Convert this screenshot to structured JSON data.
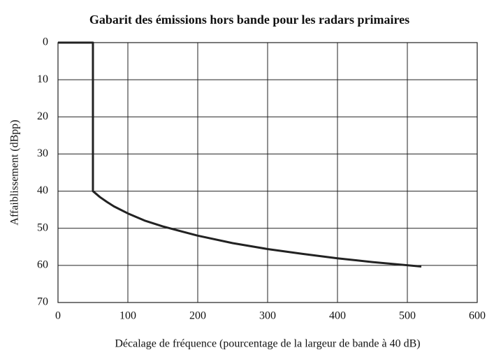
{
  "chart_data": {
    "type": "line",
    "title": "Gabarit des émissions hors bande pour les radars primaires",
    "xlabel": "Décalage de fréquence (pourcentage de la largeur de bande à 40 dB)",
    "ylabel": "Affaiblissement (dBpp)",
    "x": [
      0,
      50,
      50,
      60,
      70,
      80,
      100,
      125,
      150,
      200,
      250,
      300,
      350,
      400,
      450,
      520
    ],
    "series": [
      {
        "name": "Gabarit",
        "color": "#222222",
        "values": [
          0,
          0,
          40,
          41.6,
          42.9,
          44.1,
          46.0,
          48.0,
          49.5,
          52.0,
          54.0,
          55.6,
          56.9,
          58.1,
          59.1,
          60.3
        ]
      }
    ],
    "xlim": [
      0,
      600
    ],
    "xticks": [
      0,
      100,
      200,
      300,
      400,
      500,
      600
    ],
    "ylim": [
      0,
      70
    ],
    "yticks": [
      0,
      10,
      20,
      30,
      40,
      50,
      60,
      70
    ],
    "y_inverted": true,
    "grid": true
  }
}
